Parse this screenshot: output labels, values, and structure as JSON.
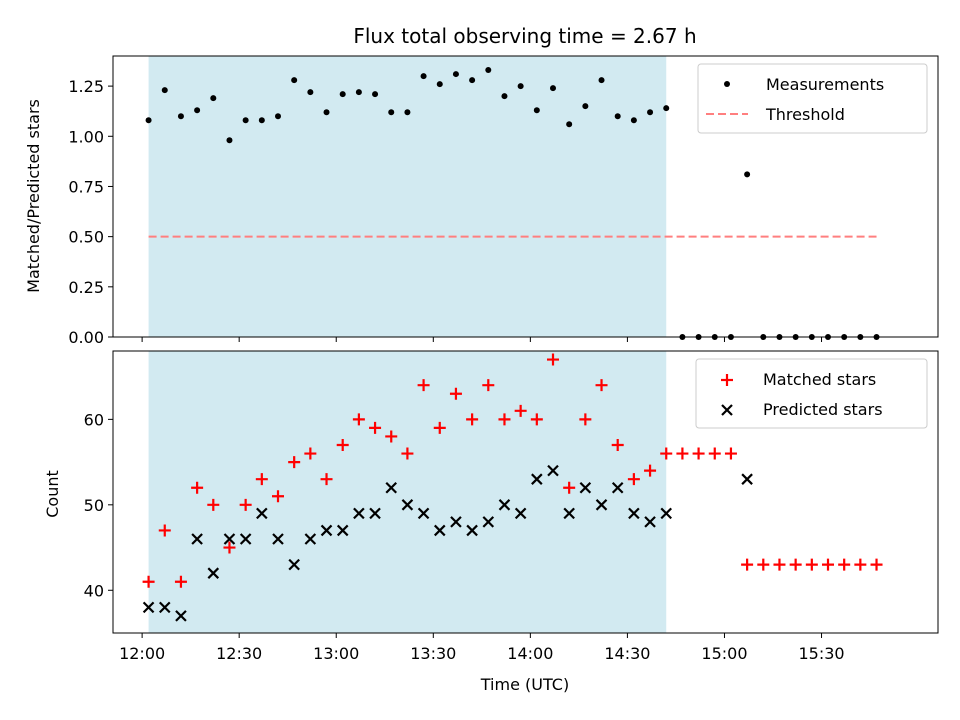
{
  "chart_data": {
    "type": "scatter",
    "title": "Flux total observing time = 2.67 h",
    "xlabel": "Time (UTC)",
    "x_tick_labels": [
      "12:00",
      "12:30",
      "13:00",
      "13:30",
      "14:00",
      "14:30",
      "15:00",
      "15:30"
    ],
    "x_tick_values": [
      "12:00",
      "12:30",
      "13:00",
      "13:30",
      "14:00",
      "14:30",
      "15:00",
      "15:30"
    ],
    "xlim": [
      "11:51",
      "16:06"
    ],
    "shaded_interval": [
      "12:02",
      "14:42"
    ],
    "colors": {
      "shade": "#add8e6",
      "matched": "#ff0000",
      "predicted": "#000000",
      "measurements": "#000000",
      "threshold": "#ff7f7f"
    },
    "panels": [
      {
        "ylabel": "Matched/Predicted stars",
        "ylim": [
          0,
          1.4
        ],
        "y_tick_labels": [
          "0.00",
          "0.25",
          "0.50",
          "0.75",
          "1.00",
          "1.25"
        ],
        "y_tick_values": [
          0,
          0.25,
          0.5,
          0.75,
          1.0,
          1.25
        ],
        "legend": {
          "position": "upper right",
          "entries": [
            "Measurements",
            "Threshold"
          ]
        },
        "series": [
          {
            "name": "Measurements",
            "marker": "dot",
            "x": [
              "12:02",
              "12:07",
              "12:12",
              "12:17",
              "12:22",
              "12:27",
              "12:32",
              "12:37",
              "12:42",
              "12:47",
              "12:52",
              "12:57",
              "13:02",
              "13:07",
              "13:12",
              "13:17",
              "13:22",
              "13:27",
              "13:32",
              "13:37",
              "13:42",
              "13:47",
              "13:52",
              "13:57",
              "14:02",
              "14:07",
              "14:12",
              "14:17",
              "14:22",
              "14:27",
              "14:32",
              "14:37",
              "14:42",
              "14:47",
              "14:52",
              "14:57",
              "15:02",
              "15:07",
              "15:12",
              "15:17",
              "15:22",
              "15:27",
              "15:32",
              "15:37",
              "15:42",
              "15:47"
            ],
            "values": [
              1.08,
              1.23,
              1.1,
              1.13,
              1.19,
              0.98,
              1.08,
              1.08,
              1.1,
              1.28,
              1.22,
              1.12,
              1.21,
              1.22,
              1.21,
              1.12,
              1.12,
              1.3,
              1.26,
              1.31,
              1.28,
              1.33,
              1.2,
              1.25,
              1.13,
              1.24,
              1.06,
              1.15,
              1.28,
              1.1,
              1.08,
              1.12,
              1.14,
              0,
              0,
              0,
              0,
              0.81,
              0,
              0,
              0,
              0,
              0,
              0,
              0,
              0
            ]
          },
          {
            "name": "Threshold",
            "marker": "dashed-line",
            "x": [
              "12:02",
              "15:47"
            ],
            "values": [
              0.5,
              0.5
            ]
          }
        ]
      },
      {
        "ylabel": "Count",
        "ylim": [
          35,
          68
        ],
        "y_tick_labels": [
          "40",
          "50",
          "60"
        ],
        "y_tick_values": [
          40,
          50,
          60
        ],
        "legend": {
          "position": "upper right",
          "entries": [
            "Matched stars",
            "Predicted stars"
          ]
        },
        "series": [
          {
            "name": "Matched stars",
            "marker": "plus",
            "x": [
              "12:02",
              "12:07",
              "12:12",
              "12:17",
              "12:22",
              "12:27",
              "12:32",
              "12:37",
              "12:42",
              "12:47",
              "12:52",
              "12:57",
              "13:02",
              "13:07",
              "13:12",
              "13:17",
              "13:22",
              "13:27",
              "13:32",
              "13:37",
              "13:42",
              "13:47",
              "13:52",
              "13:57",
              "14:02",
              "14:07",
              "14:12",
              "14:17",
              "14:22",
              "14:27",
              "14:32",
              "14:37",
              "14:42",
              "14:47",
              "14:52",
              "14:57",
              "15:02",
              "15:07",
              "15:12",
              "15:17",
              "15:22",
              "15:27",
              "15:32",
              "15:37",
              "15:42",
              "15:47"
            ],
            "values": [
              41,
              47,
              41,
              52,
              50,
              45,
              50,
              53,
              51,
              55,
              56,
              53,
              57,
              60,
              59,
              58,
              56,
              64,
              59,
              63,
              60,
              64,
              60,
              61,
              60,
              67,
              52,
              60,
              64,
              57,
              53,
              54,
              56,
              56,
              56,
              56,
              56,
              43,
              43,
              43,
              43,
              43,
              43,
              43,
              43,
              43
            ]
          },
          {
            "name": "Predicted stars",
            "marker": "x",
            "x": [
              "12:02",
              "12:07",
              "12:12",
              "12:17",
              "12:22",
              "12:27",
              "12:32",
              "12:37",
              "12:42",
              "12:47",
              "12:52",
              "12:57",
              "13:02",
              "13:07",
              "13:12",
              "13:17",
              "13:22",
              "13:27",
              "13:32",
              "13:37",
              "13:42",
              "13:47",
              "13:52",
              "13:57",
              "14:02",
              "14:07",
              "14:12",
              "14:17",
              "14:22",
              "14:27",
              "14:32",
              "14:37",
              "14:42",
              "15:07"
            ],
            "values": [
              38,
              38,
              37,
              46,
              42,
              46,
              46,
              49,
              46,
              43,
              46,
              47,
              47,
              49,
              49,
              52,
              50,
              49,
              47,
              48,
              47,
              48,
              50,
              49,
              53,
              54,
              49,
              52,
              50,
              52,
              49,
              48,
              49,
              53
            ]
          }
        ]
      }
    ]
  }
}
